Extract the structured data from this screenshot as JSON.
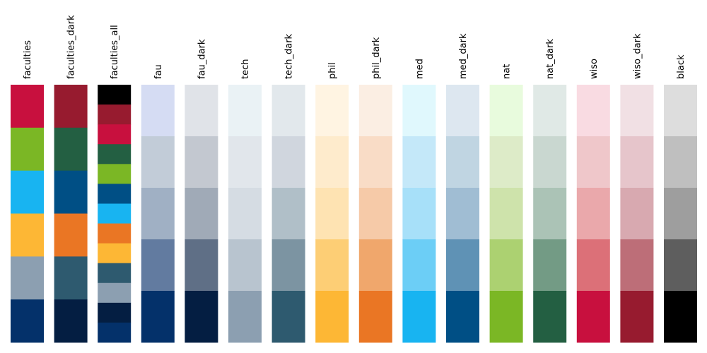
{
  "chart_data": {
    "type": "heatmap",
    "palettes": [
      {
        "name": "faculties",
        "colors": [
          "#c8103e",
          "#7bb725",
          "#18b4f1",
          "#fdb735",
          "#8c9fb1",
          "#04316a"
        ]
      },
      {
        "name": "faculties_dark",
        "colors": [
          "#971b2f",
          "#235f42",
          "#004f85",
          "#ea7624",
          "#2e5a6f",
          "#041e42"
        ]
      },
      {
        "name": "faculties_all",
        "colors": [
          "#000000",
          "#971b2f",
          "#c8103e",
          "#235f42",
          "#7bb725",
          "#004f85",
          "#18b4f1",
          "#ea7624",
          "#fdb735",
          "#2e5a6f",
          "#8c9fb1",
          "#041e42",
          "#04316a"
        ]
      },
      {
        "name": "fau",
        "colors": [
          "#d5dcf3",
          "#c2ccd8",
          "#a0b0c4",
          "#627ba0",
          "#04316a"
        ]
      },
      {
        "name": "fau_dark",
        "colors": [
          "#e0e3e8",
          "#c3c8d0",
          "#a0aab7",
          "#5f6f86",
          "#041e42"
        ]
      },
      {
        "name": "tech",
        "colors": [
          "#eaf2f5",
          "#e1e6eb",
          "#d5dce3",
          "#b8c4cf",
          "#8c9fb1"
        ]
      },
      {
        "name": "tech_dark",
        "colors": [
          "#e2e8ec",
          "#d0d6de",
          "#b0bfc8",
          "#7c94a2",
          "#2e5a6f"
        ]
      },
      {
        "name": "phil",
        "colors": [
          "#fff4e2",
          "#feebcc",
          "#fee3b2",
          "#fdce75",
          "#fdb735"
        ]
      },
      {
        "name": "phil_dark",
        "colors": [
          "#fbeee3",
          "#f9dcc6",
          "#f6caa8",
          "#f0a76c",
          "#ea7624"
        ]
      },
      {
        "name": "med",
        "colors": [
          "#e0f8fd",
          "#c4e8f9",
          "#a7e0f9",
          "#6ccef6",
          "#18b4f1"
        ]
      },
      {
        "name": "med_dark",
        "colors": [
          "#dde7f0",
          "#c0d5e2",
          "#a0bdd3",
          "#5f92b5",
          "#004f85"
        ]
      },
      {
        "name": "nat",
        "colors": [
          "#e8fbdd",
          "#ddebc8",
          "#cee3ab",
          "#acd171",
          "#7bb725"
        ]
      },
      {
        "name": "nat_dark",
        "colors": [
          "#e0e9e6",
          "#c9d7d0",
          "#abc3b6",
          "#739b85",
          "#235f42"
        ]
      },
      {
        "name": "wiso",
        "colors": [
          "#f9dbe2",
          "#efc7ca",
          "#eaa8ab",
          "#dc7078",
          "#c8103e"
        ]
      },
      {
        "name": "wiso_dark",
        "colors": [
          "#f1e0e4",
          "#e6c5cb",
          "#d8a9b0",
          "#bd6e78",
          "#971b2f"
        ]
      },
      {
        "name": "black",
        "colors": [
          "#dddddd",
          "#bfbfbf",
          "#9e9e9e",
          "#5e5e5e",
          "#000000"
        ]
      }
    ]
  }
}
